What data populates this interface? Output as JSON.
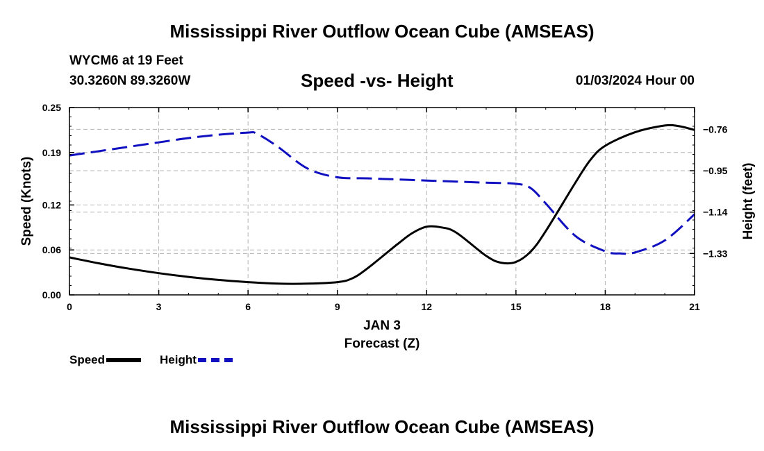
{
  "header": {
    "title": "Mississippi River Outflow Ocean Cube (AMSEAS)",
    "station": "WYCM6 at 19 Feet",
    "coords": "30.3260N  89.3260W",
    "subtitle": "Speed -vs- Height",
    "datetime": "01/03/2024 Hour 00"
  },
  "footer": {
    "title": "Mississippi River Outflow Ocean Cube (AMSEAS)"
  },
  "legend": {
    "speed_label": "Speed",
    "height_label": "Height"
  },
  "chart_data": {
    "type": "line",
    "title": "Speed -vs- Height",
    "xlabel": "Forecast (Z)",
    "xlabel_date": "JAN 3",
    "xlim": [
      0,
      21
    ],
    "xticks": [
      0,
      3,
      6,
      9,
      12,
      15,
      18,
      21
    ],
    "y_left": {
      "label": "Speed (Knots)",
      "lim": [
        0,
        0.25
      ],
      "ticks": [
        "0.00",
        "0.06",
        "0.12",
        "0.19",
        "0.25"
      ]
    },
    "y_right": {
      "label": "Height (feet)",
      "lim": [
        -1.52,
        -0.66
      ],
      "ticks": [
        "-0.76",
        "-0.95",
        "-1.14",
        "-1.33"
      ]
    },
    "grid": true,
    "series": [
      {
        "name": "Speed",
        "axis": "left",
        "color": "#000000",
        "style": "solid",
        "x": [
          0,
          1,
          2,
          3,
          4,
          5,
          6,
          7,
          8,
          9,
          9.5,
          10,
          11,
          11.5,
          12,
          12.5,
          13,
          14,
          14.5,
          15,
          15.5,
          16,
          17,
          17.5,
          18,
          19,
          20,
          20.5,
          21
        ],
        "y": [
          0.05,
          0.042,
          0.035,
          0.029,
          0.024,
          0.02,
          0.017,
          0.015,
          0.015,
          0.017,
          0.022,
          0.035,
          0.067,
          0.082,
          0.091,
          0.09,
          0.083,
          0.052,
          0.043,
          0.044,
          0.058,
          0.085,
          0.15,
          0.18,
          0.199,
          0.217,
          0.226,
          0.225,
          0.22
        ]
      },
      {
        "name": "Height",
        "axis": "right",
        "color": "#1010c0",
        "style": "dashed",
        "x": [
          0,
          1,
          2,
          3,
          4,
          5,
          6,
          6.3,
          7,
          8,
          9,
          10,
          11,
          12,
          13,
          14,
          15,
          15.5,
          16,
          17,
          18,
          18.5,
          19,
          20,
          21
        ],
        "y": [
          -0.88,
          -0.86,
          -0.84,
          -0.82,
          -0.8,
          -0.785,
          -0.775,
          -0.78,
          -0.84,
          -0.94,
          -0.98,
          -0.985,
          -0.99,
          -0.995,
          -1.0,
          -1.005,
          -1.01,
          -1.03,
          -1.1,
          -1.25,
          -1.32,
          -1.33,
          -1.325,
          -1.27,
          -1.15
        ]
      }
    ]
  }
}
